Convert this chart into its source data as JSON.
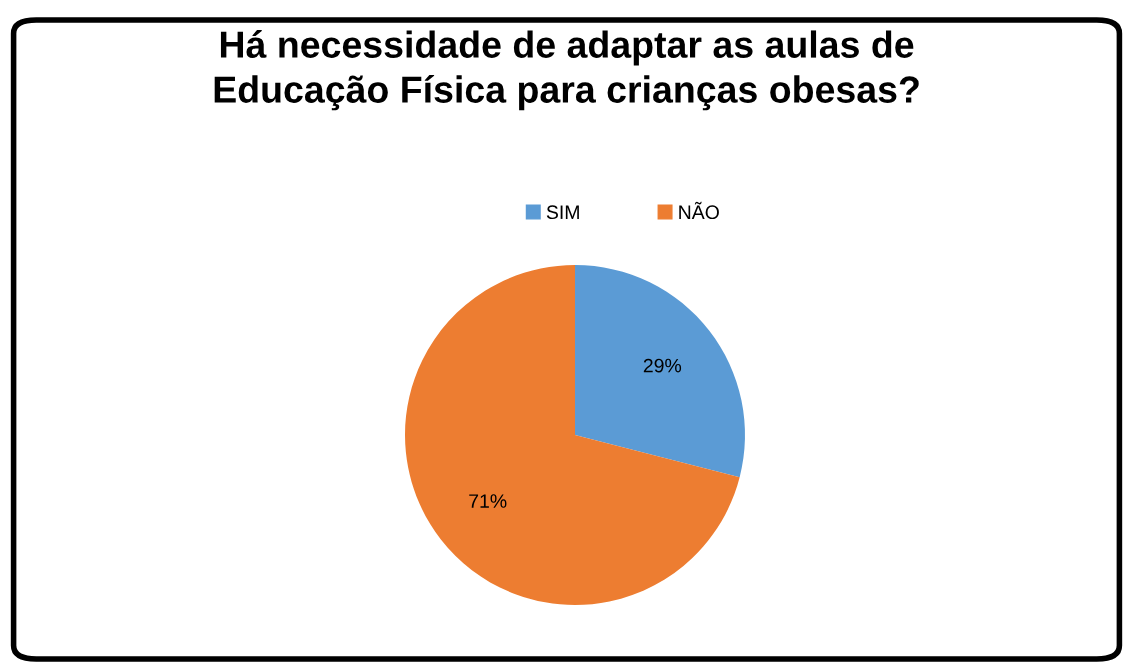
{
  "chart_data": {
    "type": "pie",
    "title": "Há necessidade de adaptar as aulas de\nEducação Física para crianças obesas?",
    "categories": [
      "SIM",
      "NÃO"
    ],
    "values": [
      29,
      71
    ],
    "colors": [
      "#5b9bd5",
      "#ed7d31"
    ],
    "value_labels": [
      "29%",
      "71%"
    ],
    "legend": "top"
  }
}
